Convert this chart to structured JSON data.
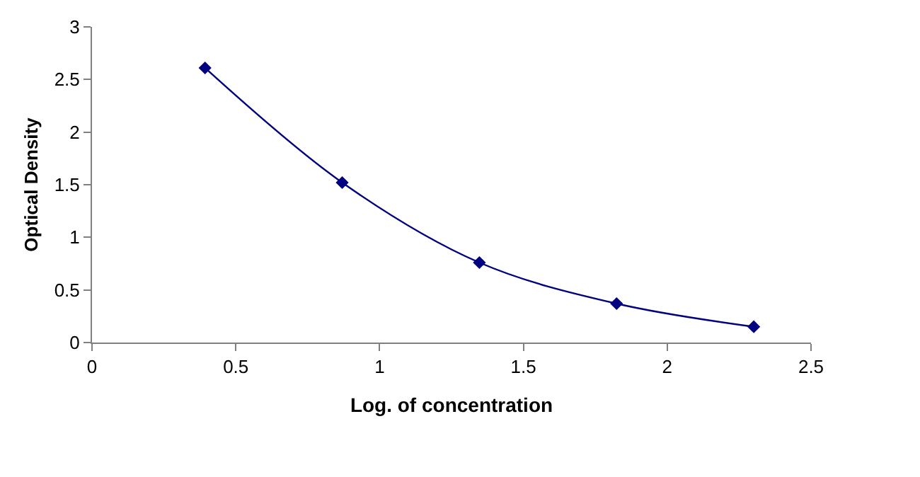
{
  "chart_data": {
    "type": "line",
    "xlabel": "Log. of concentration",
    "ylabel": "Optical Density",
    "x": [
      0.393,
      0.87,
      1.347,
      1.824,
      2.301
    ],
    "series": [
      {
        "color": "#000080",
        "values": [
          2.61,
          1.52,
          0.76,
          0.37,
          0.15
        ]
      }
    ],
    "xlim": [
      0,
      2.5
    ],
    "xticks": [
      0,
      0.5,
      1,
      1.5,
      2,
      2.5
    ],
    "ylim": [
      0,
      3
    ],
    "yticks": [
      0,
      0.5,
      1,
      1.5,
      2,
      2.5,
      3
    ],
    "marker": "diamond",
    "line_style": "solid"
  }
}
